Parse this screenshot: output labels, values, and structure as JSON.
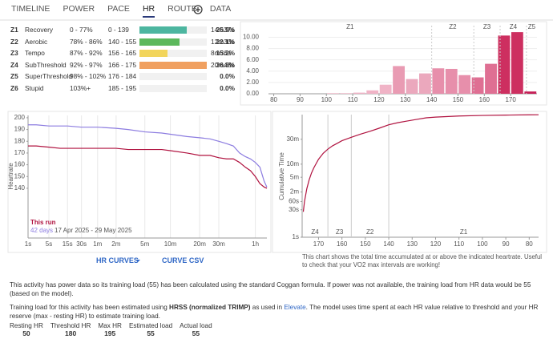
{
  "tabs": {
    "items": [
      "TIMELINE",
      "POWER",
      "PACE",
      "HR",
      "ROUTE",
      "DATA"
    ],
    "active": 3
  },
  "zones": {
    "rows": [
      [
        "Z1",
        "Recovery",
        "0 - 77%",
        "0 - 139",
        "14m37s"
      ],
      [
        "Z2",
        "Aerobic",
        "78% - 86%",
        "140 - 155",
        "12m30s"
      ],
      [
        "Z3",
        "Tempo",
        "87% - 92%",
        "156 - 165",
        "8m36s"
      ],
      [
        "Z4",
        "SubThreshold",
        "92% - 97%",
        "166 - 175",
        "20m48s"
      ],
      [
        "Z5",
        "SuperThreshold",
        "98% - 102%",
        "176 - 184",
        null
      ],
      [
        "Z6",
        "Stupid",
        "103%+",
        "185 - 195",
        null
      ]
    ],
    "values": [
      25.9,
      22.1,
      15.2,
      36.8,
      0,
      0
    ],
    "value_labels": [
      "25.9%",
      "22.1%",
      "15.2%",
      "36.8%",
      "0.0%",
      "0.0%"
    ],
    "colors": [
      "#4db6a0",
      "#5cb85c",
      "#f2d55c",
      "#f0a060",
      "#eeeeee",
      "#eeeeee"
    ]
  },
  "histogram": {
    "type": "histogram",
    "bins": [
      100,
      105,
      110,
      115,
      120,
      125,
      130,
      135,
      140,
      145,
      150,
      155,
      160,
      165,
      170,
      175,
      180
    ],
    "values": [
      0.1,
      0.1,
      0.2,
      0.6,
      1.6,
      4.9,
      2.6,
      3.6,
      4.5,
      4.4,
      3.3,
      2.9,
      5.3,
      10.3,
      10.9,
      0.4
    ],
    "colors": [
      "#f0b3c6",
      "#f0b3c6",
      "#f0b3c6",
      "#f0b3c6",
      "#f0b3c6",
      "#e99bb3",
      "#eba8bd",
      "#eba8bd",
      "#e78fab",
      "#e78fab",
      "#e78fab",
      "#df6f93",
      "#df6f93",
      "#cd2f60",
      "#cd2f60",
      "#c51f57"
    ],
    "xlim": [
      78,
      180
    ],
    "ylim": [
      0,
      11.2
    ],
    "xticks": [
      80,
      90,
      100,
      110,
      120,
      130,
      140,
      150,
      160,
      170
    ],
    "yticks": [
      {
        "value": 0,
        "label": "0.00"
      },
      {
        "value": 2,
        "label": "2.00"
      },
      {
        "value": 4,
        "label": "4.00"
      },
      {
        "value": 6,
        "label": "6.00"
      },
      {
        "value": 8,
        "label": "8.00"
      },
      {
        "value": 10,
        "label": "10.00"
      }
    ],
    "zone_lines": [
      140,
      156,
      166,
      176
    ],
    "zone_labels": [
      "Z1",
      "Z2",
      "Z3",
      "Z4",
      "Z5"
    ],
    "grid": true
  },
  "hr_curve": {
    "type": "line",
    "xscale": "pow",
    "xscale_exponent": 0.2,
    "x": [
      1,
      2,
      5,
      10,
      15,
      30,
      60,
      120,
      180,
      300,
      480,
      600,
      900,
      1200,
      1500,
      1800,
      2100,
      2400,
      2700,
      3000,
      3300,
      3600,
      3900,
      4200,
      4400
    ],
    "series": [
      {
        "name": "This run",
        "color": "#b0123f",
        "values": [
          176,
          176,
          175,
          174,
          174,
          174,
          174,
          174,
          173,
          173,
          173,
          172,
          170,
          168,
          168,
          166,
          165,
          165,
          162,
          158,
          155,
          150,
          144,
          141,
          140
        ]
      },
      {
        "name": "42 days",
        "color": "#8c7ce0",
        "values": [
          194,
          194,
          193,
          193,
          193,
          192,
          192,
          191,
          190,
          188,
          187,
          186,
          184,
          183,
          182,
          180,
          178,
          176,
          170,
          167,
          165,
          162,
          158,
          146,
          141
        ]
      }
    ],
    "date_range": "17 Apr 2025 - 29 May 2025",
    "ylabel": "Heartrate",
    "xlim": [
      1,
      4400
    ],
    "ylim": [
      97.7,
      202
    ],
    "xticks": [
      {
        "value": 1,
        "label": "1s"
      },
      {
        "value": 5,
        "label": "5s"
      },
      {
        "value": 15,
        "label": "15s"
      },
      {
        "value": 30,
        "label": "30s"
      },
      {
        "value": 60,
        "label": "1m"
      },
      {
        "value": 120,
        "label": "2m"
      },
      {
        "value": 300,
        "label": "5m"
      },
      {
        "value": 600,
        "label": "10m"
      },
      {
        "value": 1200,
        "label": "20m"
      },
      {
        "value": 1800,
        "label": "30m"
      },
      {
        "value": 3600,
        "label": "1h"
      }
    ],
    "yticks": [
      140,
      150,
      160,
      170,
      180,
      190,
      200
    ],
    "grid": true
  },
  "cumulative": {
    "type": "line",
    "yscale": "pow",
    "yscale_exponent": 0.2,
    "x": [
      176.5,
      176,
      175,
      174,
      173,
      172,
      171,
      170,
      168,
      166,
      164,
      162,
      160,
      156,
      152,
      148,
      144,
      140,
      136,
      132,
      128,
      124,
      120,
      110,
      100,
      90,
      80,
      76
    ],
    "values": [
      25,
      60,
      150,
      260,
      380,
      500,
      620,
      760,
      1000,
      1200,
      1380,
      1530,
      1700,
      1950,
      2200,
      2450,
      2750,
      3100,
      3350,
      3550,
      3750,
      3950,
      4050,
      4200,
      4280,
      4330,
      4370,
      4380
    ],
    "color": "#b0123f",
    "ylabel": "Cumulative Time",
    "xlim": [
      177,
      76
    ],
    "ylim": [
      1,
      4400
    ],
    "xticks": [
      170,
      160,
      150,
      140,
      130,
      120,
      110,
      100,
      90,
      80
    ],
    "yticks": [
      {
        "value": 1,
        "label": "1s"
      },
      {
        "value": 30,
        "label": "30s"
      },
      {
        "value": 60,
        "label": "60s"
      },
      {
        "value": 120,
        "label": "2m"
      },
      {
        "value": 300,
        "label": "5m"
      },
      {
        "value": 600,
        "label": "10m"
      },
      {
        "value": 1800,
        "label": "30m"
      }
    ],
    "zone_lines": [
      166,
      156,
      140
    ],
    "zone_labels": [
      "Z4",
      "Z3",
      "Z2",
      "Z1"
    ],
    "caption": "This chart shows the total time accumulated at or above the indicated heartrate. Useful to check that your VO2 max intervals are working!"
  },
  "buttons": [
    "HR CURVES",
    "CURVE CSV"
  ],
  "notes": {
    "power": "This activity has power data so its training load (55) has been calculated using the standard Coggan formula. If power was not available, the training load from HR data would be 55 (based on the model).",
    "training": [
      "Training load for this activity has been estimated using ",
      "HRSS (normalized TRIMP)",
      " as used in ",
      "Elevate",
      ". The model uses time spent at each HR value relative to threshold and your HR reserve (max - resting HR) to estimate training load."
    ]
  },
  "stats": [
    {
      "label": "Resting HR",
      "value": 50
    },
    {
      "label": "Threshold HR",
      "value": 180
    },
    {
      "label": "Max HR",
      "value": 195
    },
    {
      "label": "Estimated load",
      "value": 55
    },
    {
      "label": "Actual load",
      "value": 55
    }
  ]
}
